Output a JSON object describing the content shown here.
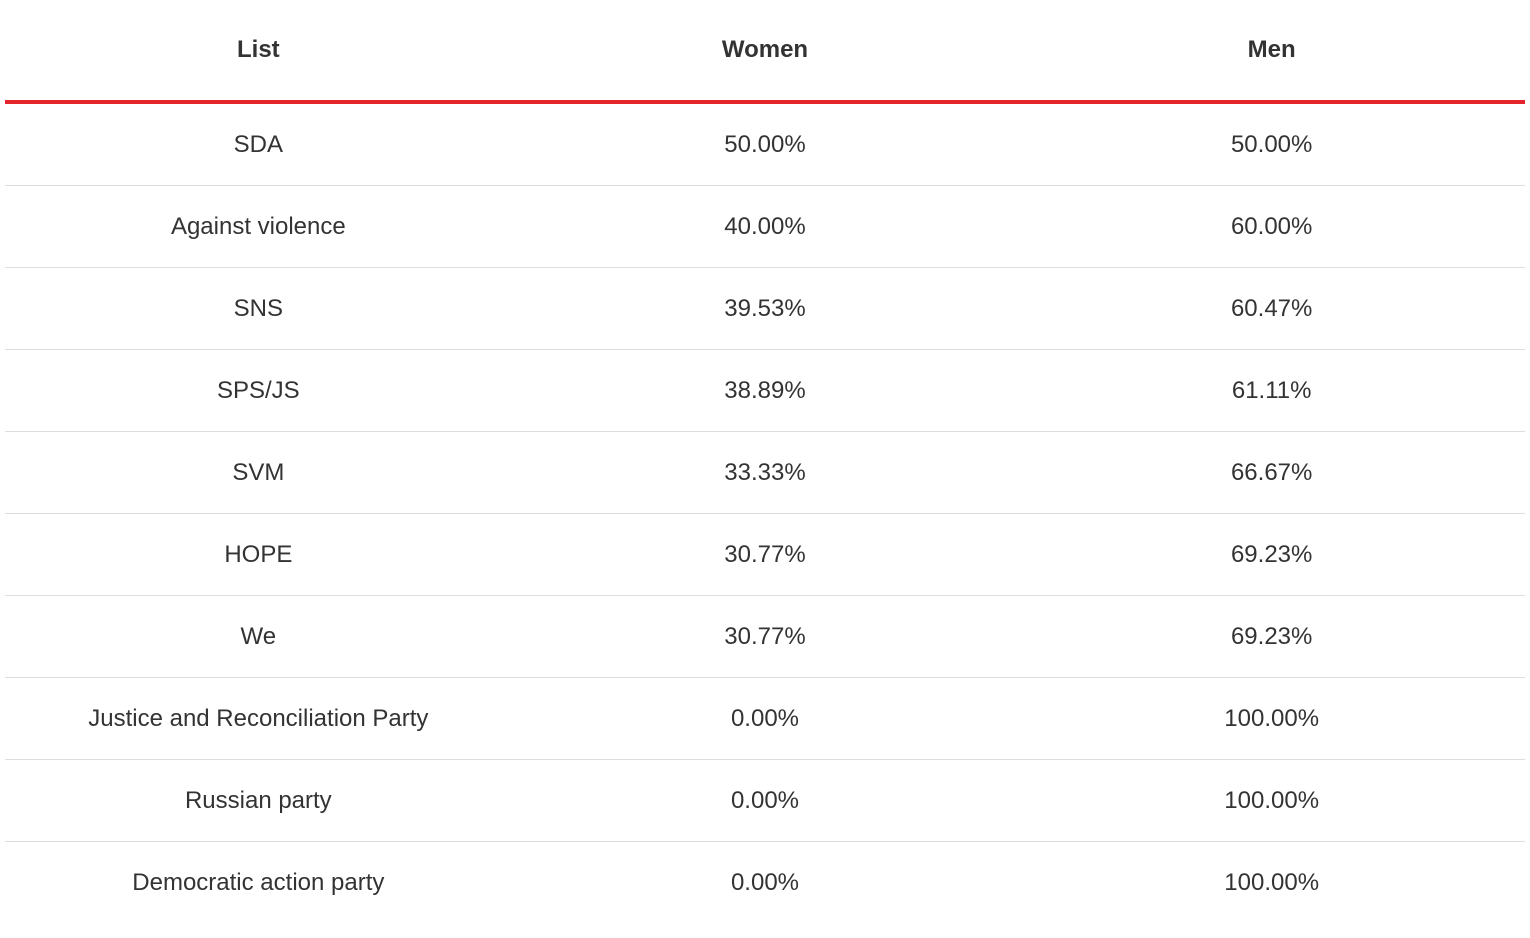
{
  "table": {
    "headers": [
      "List",
      "Women",
      "Men"
    ],
    "rows": [
      [
        "SDA",
        "50.00%",
        "50.00%"
      ],
      [
        "Against violence",
        "40.00%",
        "60.00%"
      ],
      [
        "SNS",
        "39.53%",
        "60.47%"
      ],
      [
        "SPS/JS",
        "38.89%",
        "61.11%"
      ],
      [
        "SVM",
        "33.33%",
        "66.67%"
      ],
      [
        "HOPE",
        "30.77%",
        "69.23%"
      ],
      [
        "We",
        "30.77%",
        "69.23%"
      ],
      [
        "Justice and Reconciliation Party",
        "0.00%",
        "100.00%"
      ],
      [
        "Russian party",
        "0.00%",
        "100.00%"
      ],
      [
        "Democratic action party",
        "0.00%",
        "100.00%"
      ]
    ]
  },
  "colors": {
    "header_rule": "#e3242b",
    "row_rule": "#dddddd",
    "text": "#333333"
  }
}
